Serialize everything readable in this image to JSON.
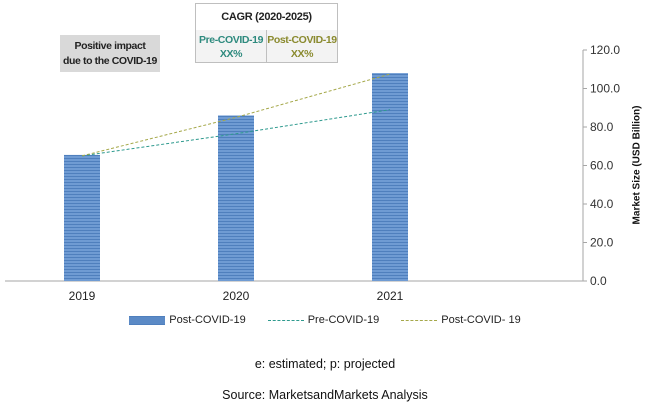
{
  "chart_data": {
    "type": "bar",
    "categories": [
      "2019",
      "2020",
      "2021"
    ],
    "series": [
      {
        "name": "Post-COVID-19",
        "kind": "bar",
        "values": [
          65.5,
          86.0,
          108.0
        ],
        "color": "#5b8ac6"
      },
      {
        "name": "Pre-COVID-19",
        "kind": "line-dashed",
        "values": [
          65.0,
          76.5,
          89.0
        ],
        "color": "#2e9a8e"
      },
      {
        "name": "Post-COVID- 19",
        "kind": "line-dashed",
        "values": [
          65.0,
          85.0,
          107.5
        ],
        "color": "#a5a84a"
      }
    ],
    "ylabel": "Market Size (USD Billion)",
    "ylim": [
      0,
      120
    ],
    "yticks": [
      "0.0",
      "20.0",
      "40.0",
      "60.0",
      "80.0",
      "100.0",
      "120.0"
    ],
    "yaxis_side": "right",
    "grid": false,
    "legend_position": "bottom"
  },
  "cagr_box": {
    "title": "CAGR (2020-2025)",
    "pre_label": "Pre-COVID-19",
    "pre_value": "XX%",
    "post_label": "Post-COVID-19",
    "post_value": "XX%",
    "pre_color": "#2e8a7e",
    "post_color": "#8a8a2e"
  },
  "impact_box": {
    "line1": "Positive impact",
    "line2": "due to the COVID-19"
  },
  "notes": {
    "estimated": "e: estimated; p: projected",
    "source": "Source: MarketsandMarkets Analysis"
  }
}
